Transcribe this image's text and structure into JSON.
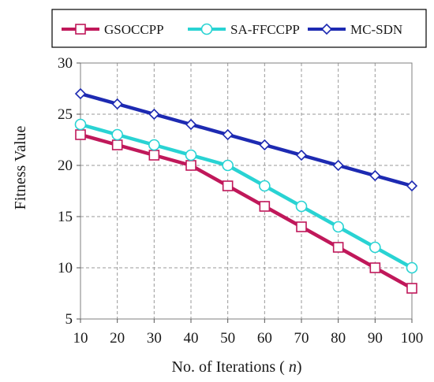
{
  "chart_data": {
    "type": "line",
    "title": "",
    "xlabel": "No. of Iterations (n)",
    "ylabel": "Fitness Value",
    "x": [
      10,
      20,
      30,
      40,
      50,
      60,
      70,
      80,
      90,
      100
    ],
    "xticks": [
      "10",
      "20",
      "30",
      "40",
      "50",
      "60",
      "70",
      "80",
      "90",
      "100"
    ],
    "yticks": [
      "5",
      "10",
      "15",
      "20",
      "25",
      "30"
    ],
    "xlim": [
      10,
      100
    ],
    "ylim": [
      5,
      30
    ],
    "grid": true,
    "legend_position": "top",
    "series": [
      {
        "name": "GSOCCPP",
        "color": "#c0185a",
        "marker": "square",
        "values": [
          23,
          22,
          21,
          20,
          18,
          16,
          14,
          12,
          10,
          8
        ]
      },
      {
        "name": "SA-FFCCPP",
        "color": "#29d3d3",
        "marker": "circle",
        "values": [
          24,
          23,
          22,
          21,
          20,
          18,
          16,
          14,
          12,
          10
        ]
      },
      {
        "name": "MC-SDN",
        "color": "#1d2ab2",
        "marker": "diamond",
        "values": [
          27,
          26,
          25,
          24,
          23,
          22,
          21,
          20,
          19,
          18
        ]
      }
    ]
  }
}
